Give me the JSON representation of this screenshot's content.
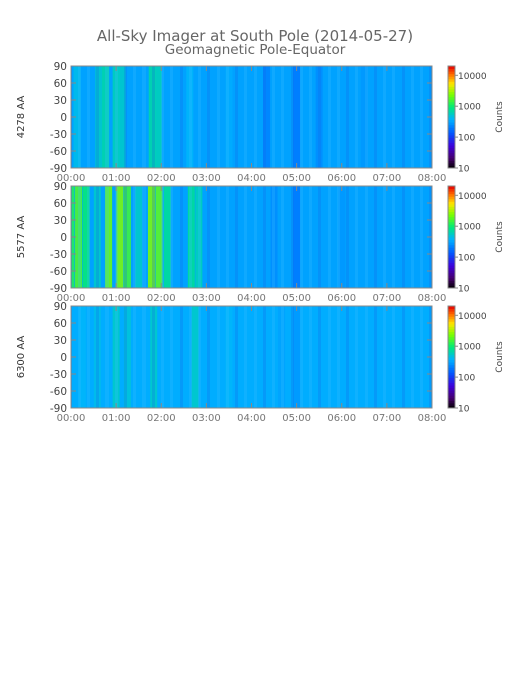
{
  "title": "All-Sky Imager at South Pole (2014-05-27)",
  "subtitle": "Geomagnetic Pole-Equator",
  "chart_data": [
    {
      "type": "heatmap",
      "ylabel": "4278 AA",
      "x_ticks": [
        "00:00",
        "01:00",
        "02:00",
        "03:00",
        "04:00",
        "05:00",
        "06:00",
        "07:00",
        "08:00"
      ],
      "xlim": [
        "00:00",
        "08:00"
      ],
      "y_ticks": [
        90,
        60,
        30,
        0,
        -30,
        -60,
        -90
      ],
      "ylim": [
        -90,
        90
      ],
      "colorbar": {
        "label": "Counts",
        "scale": "log",
        "range": [
          10,
          20000
        ],
        "ticks": [
          "10000",
          "1000",
          "100",
          "10"
        ]
      },
      "background_log_counts": 2.5,
      "bands": [
        {
          "t": "00:08",
          "log_counts": 2.65
        },
        {
          "t": "00:37",
          "log_counts": 2.75
        },
        {
          "t": "00:46",
          "log_counts": 2.85
        },
        {
          "t": "01:00",
          "log_counts": 2.8
        },
        {
          "t": "01:08",
          "log_counts": 2.75
        },
        {
          "t": "01:48",
          "log_counts": 2.85
        },
        {
          "t": "01:56",
          "log_counts": 2.8
        },
        {
          "t": "02:38",
          "log_counts": 2.6
        },
        {
          "t": "03:30",
          "log_counts": 2.55
        },
        {
          "t": "04:20",
          "log_counts": 2.35
        },
        {
          "t": "05:00",
          "log_counts": 2.3
        },
        {
          "t": "05:30",
          "log_counts": 2.4
        },
        {
          "t": "06:30",
          "log_counts": 2.45
        },
        {
          "t": "07:30",
          "log_counts": 2.5
        }
      ]
    },
    {
      "type": "heatmap",
      "ylabel": "5577 AA",
      "x_ticks": [
        "00:00",
        "01:00",
        "02:00",
        "03:00",
        "04:00",
        "05:00",
        "06:00",
        "07:00",
        "08:00"
      ],
      "xlim": [
        "00:00",
        "08:00"
      ],
      "y_ticks": [
        90,
        60,
        30,
        0,
        -30,
        -60,
        -90
      ],
      "ylim": [
        -90,
        90
      ],
      "colorbar": {
        "label": "Counts",
        "scale": "log",
        "range": [
          10,
          20000
        ],
        "ticks": [
          "10000",
          "1000",
          "100",
          "10"
        ]
      },
      "background_log_counts": 2.5,
      "bands": [
        {
          "t": "00:00",
          "log_counts": 3.1
        },
        {
          "t": "00:10",
          "log_counts": 3.25
        },
        {
          "t": "00:20",
          "log_counts": 3.0
        },
        {
          "t": "00:35",
          "log_counts": 2.75
        },
        {
          "t": "00:50",
          "log_counts": 3.35
        },
        {
          "t": "01:05",
          "log_counts": 3.4
        },
        {
          "t": "01:15",
          "log_counts": 3.2
        },
        {
          "t": "01:30",
          "log_counts": 2.75
        },
        {
          "t": "01:47",
          "log_counts": 3.4
        },
        {
          "t": "01:57",
          "log_counts": 3.3
        },
        {
          "t": "02:08",
          "log_counts": 2.9
        },
        {
          "t": "02:40",
          "log_counts": 2.9
        },
        {
          "t": "02:50",
          "log_counts": 2.8
        },
        {
          "t": "03:20",
          "log_counts": 2.5
        },
        {
          "t": "04:30",
          "log_counts": 2.4
        },
        {
          "t": "05:00",
          "log_counts": 2.3
        },
        {
          "t": "06:00",
          "log_counts": 2.45
        },
        {
          "t": "07:30",
          "log_counts": 2.5
        }
      ]
    },
    {
      "type": "heatmap",
      "ylabel": "6300 AA",
      "x_ticks": [
        "00:00",
        "01:00",
        "02:00",
        "03:00",
        "04:00",
        "05:00",
        "06:00",
        "07:00",
        "08:00"
      ],
      "xlim": [
        "00:00",
        "08:00"
      ],
      "y_ticks": [
        90,
        60,
        30,
        0,
        -30,
        -60,
        -90
      ],
      "ylim": [
        -90,
        90
      ],
      "colorbar": {
        "label": "Counts",
        "scale": "log",
        "range": [
          10,
          20000
        ],
        "ticks": [
          "10000",
          "1000",
          "100",
          "10"
        ]
      },
      "background_log_counts": 2.55,
      "bands": [
        {
          "t": "00:15",
          "log_counts": 2.6
        },
        {
          "t": "00:35",
          "log_counts": 2.65
        },
        {
          "t": "01:00",
          "log_counts": 2.75
        },
        {
          "t": "01:15",
          "log_counts": 2.7
        },
        {
          "t": "01:50",
          "log_counts": 2.75
        },
        {
          "t": "02:45",
          "log_counts": 2.75
        },
        {
          "t": "03:30",
          "log_counts": 2.6
        },
        {
          "t": "04:40",
          "log_counts": 2.5
        },
        {
          "t": "05:00",
          "log_counts": 2.45
        },
        {
          "t": "06:00",
          "log_counts": 2.55
        },
        {
          "t": "07:30",
          "log_counts": 2.55
        }
      ]
    }
  ]
}
